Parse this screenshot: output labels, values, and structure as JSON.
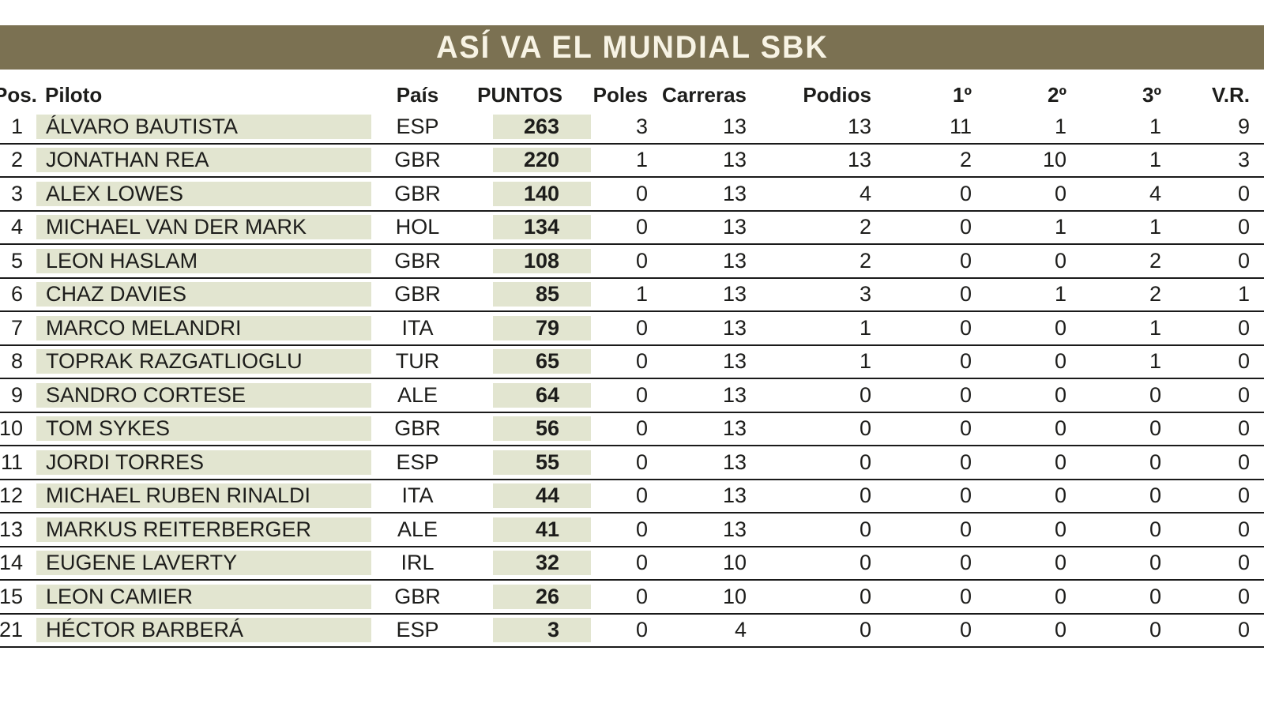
{
  "header_bar": {
    "title": "ASÍ VA EL MUNDIAL SBK"
  },
  "colors": {
    "bar_bg": "#7b7152",
    "bar_text": "#f7f3e4",
    "cell_green": "#e2e5d0",
    "text": "#1d1d1b",
    "line": "#1a1a1a"
  },
  "chart_data": {
    "type": "table",
    "title": "ASÍ VA EL MUNDIAL SBK",
    "columns": [
      "Pos.",
      "Piloto",
      "País",
      "PUNTOS",
      "Poles",
      "Carreras",
      "Podios",
      "1º",
      "2º",
      "3º",
      "V.R."
    ],
    "rows": [
      {
        "pos": "1",
        "piloto": "ÁLVARO BAUTISTA",
        "pais": "ESP",
        "puntos": "263",
        "poles": "3",
        "carreras": "13",
        "podios": "13",
        "p1": "11",
        "p2": "1",
        "p3": "1",
        "vr": "9"
      },
      {
        "pos": "2",
        "piloto": "JONATHAN REA",
        "pais": "GBR",
        "puntos": "220",
        "poles": "1",
        "carreras": "13",
        "podios": "13",
        "p1": "2",
        "p2": "10",
        "p3": "1",
        "vr": "3"
      },
      {
        "pos": "3",
        "piloto": "ALEX LOWES",
        "pais": "GBR",
        "puntos": "140",
        "poles": "0",
        "carreras": "13",
        "podios": "4",
        "p1": "0",
        "p2": "0",
        "p3": "4",
        "vr": "0"
      },
      {
        "pos": "4",
        "piloto": "MICHAEL VAN DER MARK",
        "pais": "HOL",
        "puntos": "134",
        "poles": "0",
        "carreras": "13",
        "podios": "2",
        "p1": "0",
        "p2": "1",
        "p3": "1",
        "vr": "0"
      },
      {
        "pos": "5",
        "piloto": "LEON HASLAM",
        "pais": "GBR",
        "puntos": "108",
        "poles": "0",
        "carreras": "13",
        "podios": "2",
        "p1": "0",
        "p2": "0",
        "p3": "2",
        "vr": "0"
      },
      {
        "pos": "6",
        "piloto": "CHAZ DAVIES",
        "pais": "GBR",
        "puntos": "85",
        "poles": "1",
        "carreras": "13",
        "podios": "3",
        "p1": "0",
        "p2": "1",
        "p3": "2",
        "vr": "1"
      },
      {
        "pos": "7",
        "piloto": "MARCO MELANDRI",
        "pais": "ITA",
        "puntos": "79",
        "poles": "0",
        "carreras": "13",
        "podios": "1",
        "p1": "0",
        "p2": "0",
        "p3": "1",
        "vr": "0"
      },
      {
        "pos": "8",
        "piloto": "TOPRAK RAZGATLIOGLU",
        "pais": "TUR",
        "puntos": "65",
        "poles": "0",
        "carreras": "13",
        "podios": "1",
        "p1": "0",
        "p2": "0",
        "p3": "1",
        "vr": "0"
      },
      {
        "pos": "9",
        "piloto": "SANDRO CORTESE",
        "pais": "ALE",
        "puntos": "64",
        "poles": "0",
        "carreras": "13",
        "podios": "0",
        "p1": "0",
        "p2": "0",
        "p3": "0",
        "vr": "0"
      },
      {
        "pos": "10",
        "piloto": "TOM SYKES",
        "pais": "GBR",
        "puntos": "56",
        "poles": "0",
        "carreras": "13",
        "podios": "0",
        "p1": "0",
        "p2": "0",
        "p3": "0",
        "vr": "0"
      },
      {
        "pos": "11",
        "piloto": "JORDI TORRES",
        "pais": "ESP",
        "puntos": "55",
        "poles": "0",
        "carreras": "13",
        "podios": "0",
        "p1": "0",
        "p2": "0",
        "p3": "0",
        "vr": "0"
      },
      {
        "pos": "12",
        "piloto": "MICHAEL RUBEN RINALDI",
        "pais": "ITA",
        "puntos": "44",
        "poles": "0",
        "carreras": "13",
        "podios": "0",
        "p1": "0",
        "p2": "0",
        "p3": "0",
        "vr": "0"
      },
      {
        "pos": "13",
        "piloto": "MARKUS REITERBERGER",
        "pais": "ALE",
        "puntos": "41",
        "poles": "0",
        "carreras": "13",
        "podios": "0",
        "p1": "0",
        "p2": "0",
        "p3": "0",
        "vr": "0"
      },
      {
        "pos": "14",
        "piloto": "EUGENE LAVERTY",
        "pais": "IRL",
        "puntos": "32",
        "poles": "0",
        "carreras": "10",
        "podios": "0",
        "p1": "0",
        "p2": "0",
        "p3": "0",
        "vr": "0"
      },
      {
        "pos": "15",
        "piloto": "LEON CAMIER",
        "pais": "GBR",
        "puntos": "26",
        "poles": "0",
        "carreras": "10",
        "podios": "0",
        "p1": "0",
        "p2": "0",
        "p3": "0",
        "vr": "0"
      },
      {
        "pos": "21",
        "piloto": "HÉCTOR BARBERÁ",
        "pais": "ESP",
        "puntos": "3",
        "poles": "0",
        "carreras": "4",
        "podios": "0",
        "p1": "0",
        "p2": "0",
        "p3": "0",
        "vr": "0"
      }
    ]
  }
}
